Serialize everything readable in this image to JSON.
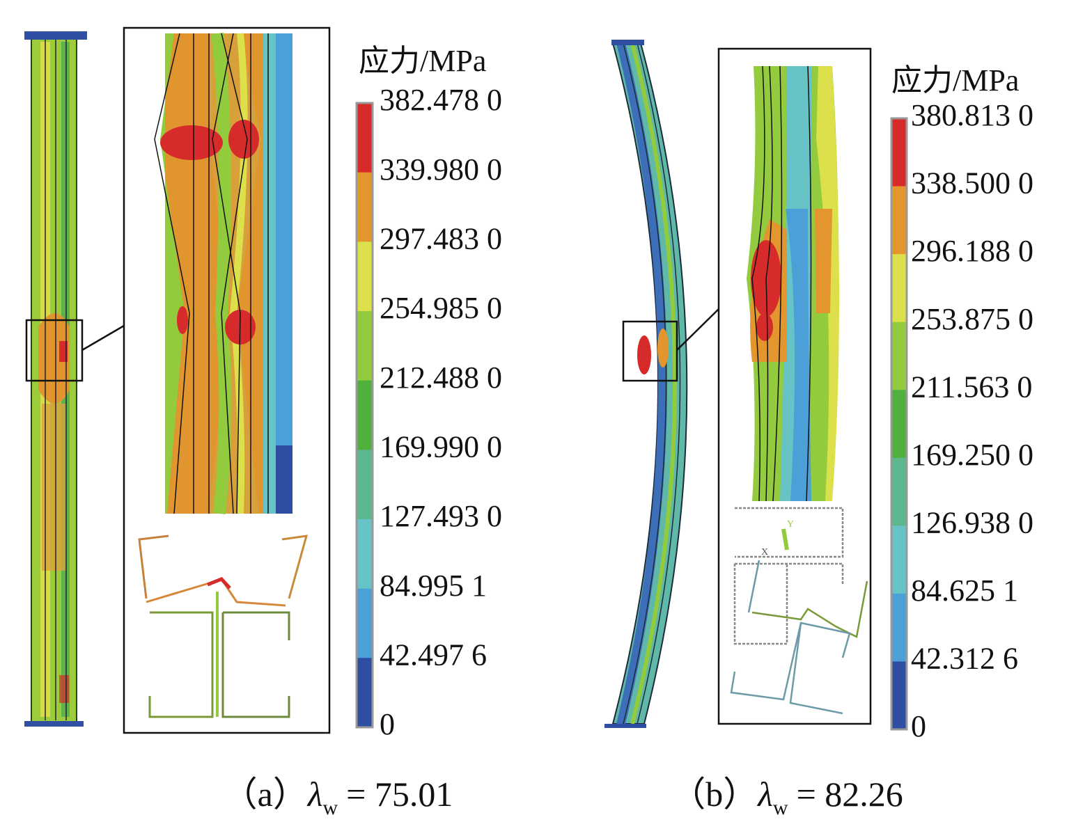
{
  "panels": [
    {
      "legend_title": "应力/MPa",
      "colorbar": {
        "labels": [
          "382.478 0",
          "339.980 0",
          "297.483 0",
          "254.985 0",
          "212.488 0",
          "169.990 0",
          "127.493 0",
          "84.995 1",
          "42.497 6",
          "0"
        ],
        "colors": [
          "#d62b2a",
          "#e3962e",
          "#dce04a",
          "#93cb3f",
          "#4fb03d",
          "#5bb88c",
          "#67c3c6",
          "#4d9fd7",
          "#2e4ea2"
        ]
      },
      "caption": {
        "label": "（a）",
        "symbol": "λ",
        "subscript": "w",
        "value": "= 75.01"
      }
    },
    {
      "legend_title": "应力/MPa",
      "colorbar": {
        "labels": [
          "380.813 0",
          "338.500 0",
          "296.188 0",
          "253.875 0",
          "211.563 0",
          "169.250 0",
          "126.938 0",
          "84.625 1",
          "42.312 6",
          "0"
        ],
        "colors": [
          "#d62b2a",
          "#e3962e",
          "#dce04a",
          "#93cb3f",
          "#4fb03d",
          "#5bb88c",
          "#67c3c6",
          "#4d9fd7",
          "#2e4ea2"
        ]
      },
      "triad_labels": [
        "Y",
        "X"
      ],
      "caption": {
        "label": "（b）",
        "symbol": "λ",
        "subscript": "w",
        "value": "= 82.26"
      }
    }
  ]
}
